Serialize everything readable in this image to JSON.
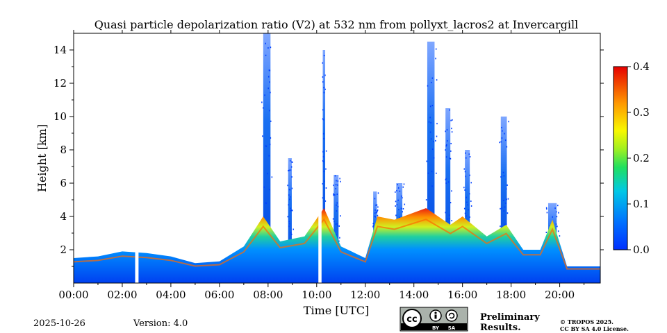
{
  "chart_data": {
    "type": "heatmap",
    "title": "Quasi particle depolarization ratio (V2) at 532 nm from pollyxt_lacros2 at Invercargill",
    "xlabel": "Time [UTC]",
    "ylabel": "Height [km]",
    "xlim_hours": [
      0,
      21.67
    ],
    "ylim_km": [
      0,
      15
    ],
    "x_ticks": [
      "00:00",
      "02:00",
      "04:00",
      "06:00",
      "08:00",
      "10:00",
      "12:00",
      "14:00",
      "16:00",
      "18:00",
      "20:00"
    ],
    "y_ticks": [
      "2",
      "4",
      "6",
      "8",
      "10",
      "12",
      "14"
    ],
    "colorbar": {
      "range": [
        0.0,
        0.4
      ],
      "ticks": [
        "0.0",
        "0.1",
        "0.2",
        "0.3",
        "0.4"
      ],
      "colormap": "jet"
    },
    "data_gaps_hours": [
      [
        2.53,
        2.67
      ],
      [
        10.07,
        10.2
      ]
    ],
    "boundary_layer_top_km": [
      [
        0.0,
        1.5
      ],
      [
        1.0,
        1.6
      ],
      [
        2.0,
        1.9
      ],
      [
        3.0,
        1.8
      ],
      [
        4.0,
        1.6
      ],
      [
        5.0,
        1.2
      ],
      [
        6.0,
        1.3
      ],
      [
        7.0,
        2.2
      ],
      [
        7.8,
        4.0
      ],
      [
        8.5,
        2.5
      ],
      [
        9.5,
        2.8
      ],
      [
        10.3,
        4.5
      ],
      [
        11.0,
        2.2
      ],
      [
        12.0,
        1.5
      ],
      [
        12.5,
        4.0
      ],
      [
        13.2,
        3.8
      ],
      [
        14.5,
        4.5
      ],
      [
        15.5,
        3.5
      ],
      [
        16.0,
        4.0
      ],
      [
        17.0,
        2.8
      ],
      [
        17.8,
        3.5
      ],
      [
        18.5,
        2.0
      ],
      [
        19.2,
        2.0
      ],
      [
        19.7,
        3.8
      ],
      [
        20.3,
        1.0
      ],
      [
        21.0,
        1.0
      ],
      [
        21.67,
        1.0
      ]
    ],
    "cloud_columns": [
      {
        "time_h": 7.95,
        "top_km": 15.0,
        "width_h": 0.3
      },
      {
        "time_h": 8.9,
        "top_km": 7.5,
        "width_h": 0.15
      },
      {
        "time_h": 10.3,
        "top_km": 14.0,
        "width_h": 0.1
      },
      {
        "time_h": 10.8,
        "top_km": 6.5,
        "width_h": 0.2
      },
      {
        "time_h": 12.4,
        "top_km": 5.5,
        "width_h": 0.15
      },
      {
        "time_h": 13.4,
        "top_km": 6.0,
        "width_h": 0.25
      },
      {
        "time_h": 14.7,
        "top_km": 14.5,
        "width_h": 0.3
      },
      {
        "time_h": 15.4,
        "top_km": 10.5,
        "width_h": 0.2
      },
      {
        "time_h": 16.2,
        "top_km": 8.0,
        "width_h": 0.2
      },
      {
        "time_h": 17.7,
        "top_km": 10.0,
        "width_h": 0.25
      },
      {
        "time_h": 19.7,
        "top_km": 4.8,
        "width_h": 0.35
      }
    ]
  },
  "footer": {
    "date": "2025-10-26",
    "version": "Version: 4.0",
    "preliminary": [
      "Preliminary",
      "Results."
    ],
    "license": [
      "© TROPOS 2025.",
      "CC BY SA 4.0 License."
    ],
    "cc_badge": [
      "BY",
      "SA"
    ]
  },
  "colors": {
    "preliminary": "#e8302a",
    "background": "#ffffff"
  }
}
